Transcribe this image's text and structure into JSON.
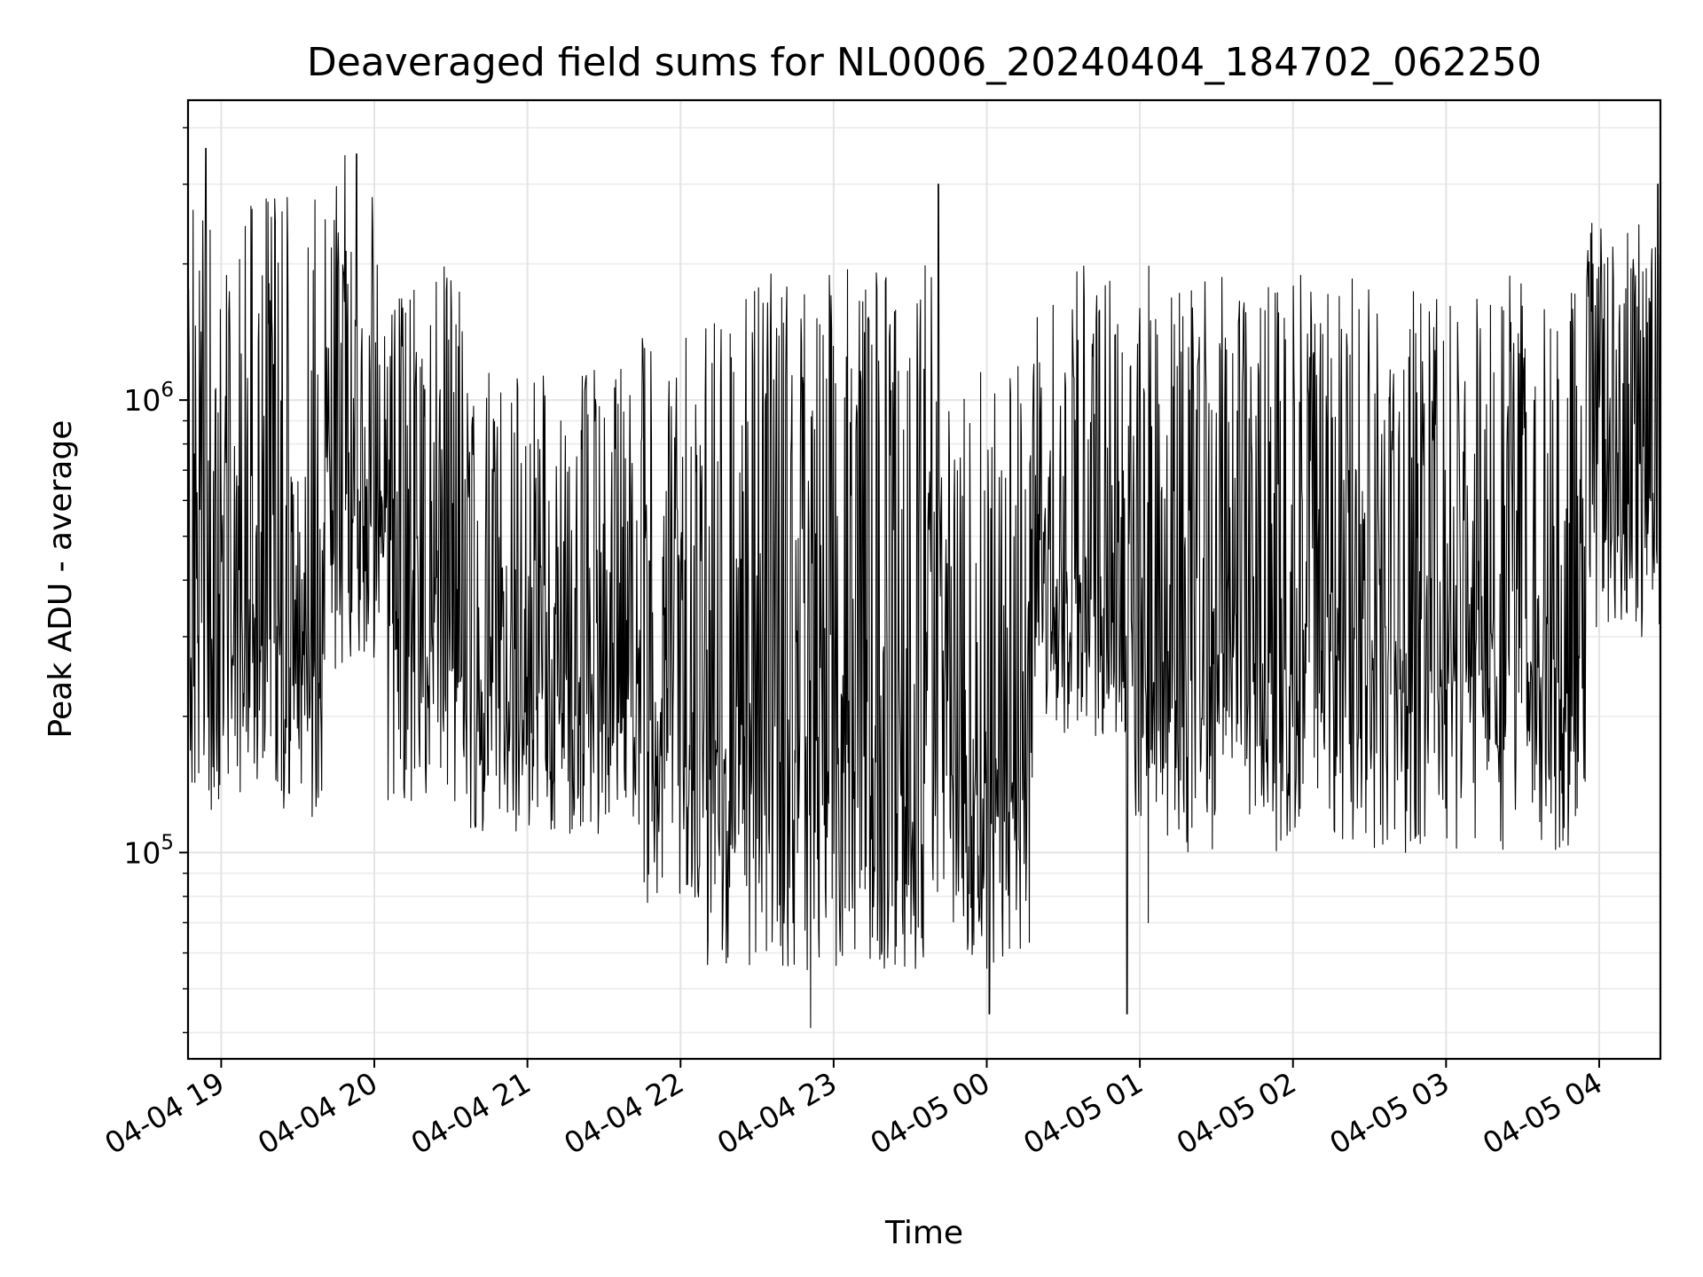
{
  "chart_data": {
    "type": "line",
    "title": "Deaveraged field sums for NL0006_20240404_184702_062250",
    "xlabel": "Time",
    "ylabel": "Peak ADU - average",
    "yscale": "log",
    "xlim": [
      "2024-04-04 18:47",
      "2024-04-05 04:24"
    ],
    "ylim": [
      35000,
      4600000
    ],
    "grid": "major and minor, light gray",
    "legend": "none",
    "line_color": "#000000",
    "x_ticks": [
      "04-04 19",
      "04-04 20",
      "04-04 21",
      "04-04 22",
      "04-04 23",
      "04-05 00",
      "04-05 01",
      "04-05 02",
      "04-05 03",
      "04-05 04"
    ],
    "x_tick_times": [
      "2024-04-04 19:00",
      "2024-04-04 20:00",
      "2024-04-04 21:00",
      "2024-04-04 22:00",
      "2024-04-04 23:00",
      "2024-04-05 00:00",
      "2024-04-05 01:00",
      "2024-04-05 02:00",
      "2024-04-05 03:00",
      "2024-04-05 04:00"
    ],
    "y_ticks": [
      {
        "base": "10",
        "exp": "5",
        "value": 100000
      },
      {
        "base": "10",
        "exp": "6",
        "value": 1000000
      }
    ],
    "series_segments": [
      {
        "from": "2024-04-04 18:47",
        "to": "2024-04-04 19:40",
        "low": 120000,
        "high": 3000000
      },
      {
        "from": "2024-04-04 19:40",
        "to": "2024-04-04 20:05",
        "low": 250000,
        "high": 3500000
      },
      {
        "from": "2024-04-04 20:05",
        "to": "2024-04-04 20:35",
        "low": 130000,
        "high": 2000000
      },
      {
        "from": "2024-04-04 20:35",
        "to": "2024-04-04 21:45",
        "low": 110000,
        "high": 1200000
      },
      {
        "from": "2024-04-04 21:45",
        "to": "2024-04-04 22:10",
        "low": 75000,
        "high": 1500000
      },
      {
        "from": "2024-04-04 22:10",
        "to": "2024-04-04 23:40",
        "low": 55000,
        "high": 2000000
      },
      {
        "from": "2024-04-04 23:40",
        "to": "2024-04-05 00:18",
        "low": 55000,
        "high": 1200000
      },
      {
        "from": "2024-04-05 00:18",
        "to": "2024-04-05 00:55",
        "low": 180000,
        "high": 2000000
      },
      {
        "from": "2024-04-05 00:55",
        "to": "2024-04-05 01:05",
        "low": 55000,
        "high": 2000000
      },
      {
        "from": "2024-04-05 01:05",
        "to": "2024-04-05 03:55",
        "low": 100000,
        "high": 1900000
      },
      {
        "from": "2024-04-05 03:55",
        "to": "2024-04-05 04:24",
        "low": 300000,
        "high": 2500000
      }
    ],
    "spikes": [
      {
        "time": "2024-04-04 18:54",
        "value": 3600000
      },
      {
        "time": "2024-04-04 19:53",
        "value": 3500000
      },
      {
        "time": "2024-04-04 23:41",
        "value": 3000000
      },
      {
        "time": "2024-04-05 04:23",
        "value": 3000000
      },
      {
        "time": "2024-04-04 22:51",
        "value": 41000
      },
      {
        "time": "2024-04-05 00:01",
        "value": 44000
      },
      {
        "time": "2024-04-05 00:55",
        "value": 44000
      }
    ]
  }
}
